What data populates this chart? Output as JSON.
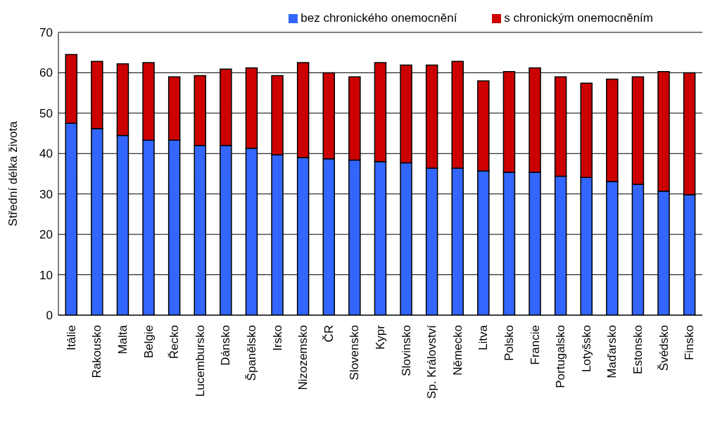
{
  "chart_data": {
    "type": "bar",
    "stacked": true,
    "ylabel": "Střední délka života",
    "categories": [
      "Itálie",
      "Rakousko",
      "Malta",
      "Belgie",
      "Řecko",
      "Lucembursko",
      "Dánsko",
      "Španělsko",
      "Irsko",
      "Nizozemsko",
      "ČR",
      "Slovensko",
      "Kypr",
      "Slovinsko",
      "Sp. Království",
      "Německo",
      "Litva",
      "Polsko",
      "Francie",
      "Portugalsko",
      "Lotyšsko",
      "Maďarsko",
      "Estonsko",
      "Švédsko",
      "Finsko"
    ],
    "series": [
      {
        "name": "bez chronického onemocnění",
        "color": "#3366ff",
        "values": [
          47.5,
          46.2,
          44.5,
          43.3,
          43.3,
          42,
          42,
          41.3,
          39.7,
          39,
          38.7,
          38.4,
          38,
          37.7,
          36.4,
          36.4,
          35.7,
          35.4,
          35.4,
          34.4,
          34.1,
          33.1,
          32.4,
          30.7,
          29.8
        ]
      },
      {
        "name": "s chronickým onemocněním",
        "color": "#cc0000",
        "values": [
          17,
          16.6,
          17.7,
          19.2,
          15.7,
          17.3,
          18.9,
          19.9,
          19.6,
          23.5,
          21.3,
          20.6,
          24.5,
          24.2,
          25.5,
          26.4,
          22.3,
          24.9,
          25.8,
          24.6,
          23.3,
          25.3,
          26.6,
          29.6,
          30.2
        ]
      }
    ],
    "ylim": [
      0,
      70
    ],
    "yticks": [
      0,
      10,
      20,
      30,
      40,
      50,
      60,
      70
    ],
    "grid": "y",
    "legend": "top right"
  }
}
